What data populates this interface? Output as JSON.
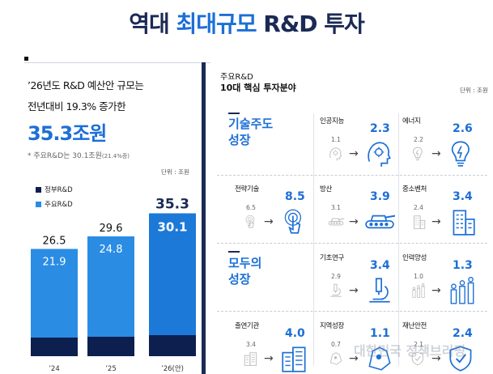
{
  "header": {
    "title_prefix": "역대 ",
    "title_highlight": "최대규모",
    "title_suffix": " R&D 투자"
  },
  "left": {
    "line1": "’26년도 R&D 예산안 규모는",
    "line2": "전년대비 19.3% 증가한",
    "big_value": "35.3조원",
    "note_main": "* 주요R&D는 30.1조원",
    "note_sub": "(21.4%증)",
    "unit": "단위 : 조원",
    "legend": [
      {
        "label": "정부R&D",
        "color": "#0d1f4f"
      },
      {
        "label": "주요R&D",
        "color": "#2a8ce3"
      }
    ]
  },
  "chart_data": {
    "type": "bar",
    "categories": [
      "’24",
      "’25",
      "’26(안)"
    ],
    "series": [
      {
        "name": "정부R&D",
        "values": [
          26.5,
          29.6,
          35.3
        ]
      },
      {
        "name": "주요R&D",
        "values": [
          21.9,
          24.8,
          30.1
        ]
      }
    ],
    "title": "",
    "xlabel": "",
    "ylabel": "",
    "ylim": [
      0,
      40
    ],
    "unit": "단위 : 조원",
    "legend_position": "top-left",
    "grid": false,
    "colors": {
      "total": "#0d1f4f",
      "major": "#2a8ce3",
      "major_highlight": "#1c79d8"
    }
  },
  "right": {
    "title1": "주요R&D",
    "title2": "10대 핵심 투자분야",
    "unit": "단위 : 조원",
    "sections": [
      {
        "label_line1": "기술주도",
        "label_line2": "성장"
      },
      {
        "label_line1": "모두의",
        "label_line2": "성장"
      }
    ],
    "fields": [
      {
        "label": "인공지능",
        "old": "1.1",
        "new": "2.3",
        "icon": "ai-head-icon"
      },
      {
        "label": "에너지",
        "old": "2.2",
        "new": "2.6",
        "icon": "lightbulb-icon"
      },
      {
        "label": "전략기술",
        "old": "6.5",
        "new": "8.5",
        "icon": "fingerprint-touch-icon"
      },
      {
        "label": "방산",
        "old": "3.1",
        "new": "3.9",
        "icon": "tank-icon"
      },
      {
        "label": "중소벤처",
        "old": "2.4",
        "new": "3.4",
        "icon": "building-icon"
      },
      {
        "label": "기초연구",
        "old": "2.9",
        "new": "3.4",
        "icon": "microscope-icon"
      },
      {
        "label": "인력양성",
        "old": "1.0",
        "new": "1.3",
        "icon": "people-growth-icon"
      },
      {
        "label": "출연기관",
        "old": "3.4",
        "new": "4.0",
        "icon": "institute-building-icon"
      },
      {
        "label": "지역성장",
        "old": "0.7",
        "new": "1.1",
        "icon": "region-map-icon"
      },
      {
        "label": "재난안전",
        "old": "2.1",
        "new": "2.4",
        "icon": "shield-icon"
      }
    ]
  },
  "watermark": "대한민국 정책브리핑"
}
